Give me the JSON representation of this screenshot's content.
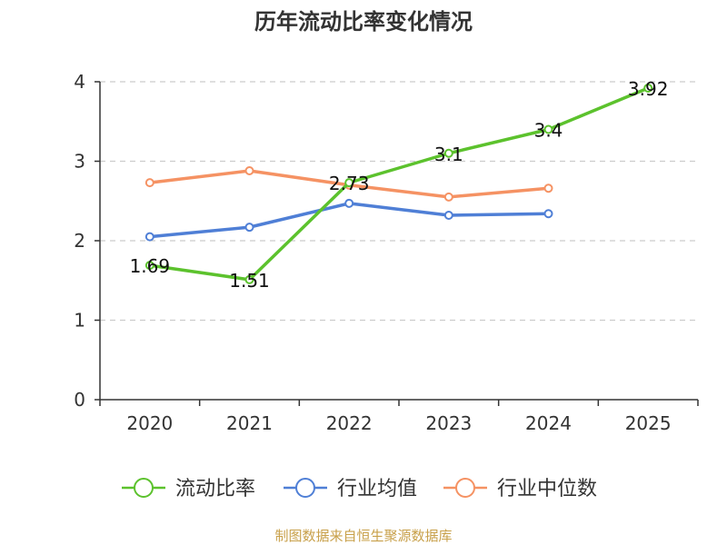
{
  "chart_data": {
    "type": "line",
    "title": "历年流动比率变化情况",
    "categories": [
      "2020",
      "2021",
      "2022",
      "2023",
      "2024",
      "2025"
    ],
    "ylim": [
      0,
      4
    ],
    "yticks": [
      "0",
      "1",
      "2",
      "3",
      "4"
    ],
    "series": [
      {
        "name": "流动比率",
        "color": "#5cc22d",
        "values": [
          1.69,
          1.51,
          2.73,
          3.1,
          3.4,
          3.92
        ],
        "labels": [
          "1.69",
          "1.51",
          "2.73",
          "3.1",
          "3.4",
          "3.92"
        ]
      },
      {
        "name": "行业均值",
        "color": "#4f7fd6",
        "values": [
          2.05,
          2.17,
          2.47,
          2.32,
          2.34,
          null
        ]
      },
      {
        "name": "行业中位数",
        "color": "#f59263",
        "values": [
          2.73,
          2.88,
          2.7,
          2.55,
          2.66,
          null
        ]
      }
    ],
    "legend_position": "bottom",
    "grid": "horizontal-dashed",
    "source": "制图数据来自恒生聚源数据库"
  }
}
